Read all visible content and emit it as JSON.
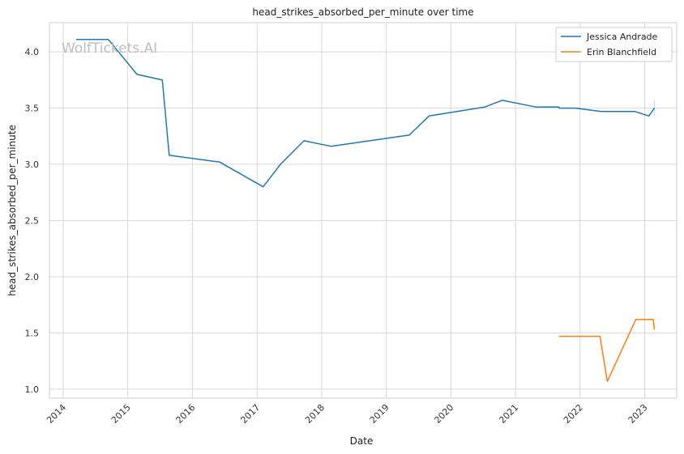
{
  "watermark": "WolfTickets.AI",
  "chart_data": {
    "type": "line",
    "title": "head_strikes_absorbed_per_minute over time",
    "xlabel": "Date",
    "ylabel": "head_strikes_absorbed_per_minute",
    "x_ticks": [
      "2014",
      "2015",
      "2016",
      "2017",
      "2018",
      "2019",
      "2020",
      "2021",
      "2022",
      "2023"
    ],
    "y_ticks": [
      "1.0",
      "1.5",
      "2.0",
      "2.5",
      "3.0",
      "3.5",
      "4.0"
    ],
    "xlim": [
      "2013-10-15",
      "2023-07-01"
    ],
    "ylim": [
      0.92,
      4.26
    ],
    "grid": true,
    "legend_position": "top-right",
    "series": [
      {
        "name": "Jessica Andrade",
        "color": "#1f77b4",
        "points": [
          [
            "2014-03-15",
            4.11
          ],
          [
            "2014-09-13",
            4.11
          ],
          [
            "2015-02-22",
            3.8
          ],
          [
            "2015-07-15",
            3.75
          ],
          [
            "2015-08-23",
            3.08
          ],
          [
            "2016-06-04",
            3.02
          ],
          [
            "2017-02-04",
            2.8
          ],
          [
            "2017-05-13",
            3.0
          ],
          [
            "2017-09-23",
            3.21
          ],
          [
            "2018-02-24",
            3.16
          ],
          [
            "2019-05-11",
            3.26
          ],
          [
            "2019-08-31",
            3.43
          ],
          [
            "2020-07-11",
            3.51
          ],
          [
            "2020-10-17",
            3.57
          ],
          [
            "2021-04-24",
            3.51
          ],
          [
            "2021-09-04",
            3.51
          ],
          [
            "2021-09-05",
            3.5
          ],
          [
            "2021-12-04",
            3.5
          ],
          [
            "2022-04-30",
            3.47
          ],
          [
            "2022-11-05",
            3.47
          ],
          [
            "2023-01-25",
            3.43
          ],
          [
            "2023-02-25",
            3.5
          ]
        ]
      },
      {
        "name": "Erin Blanchfield",
        "color": "#ff7f0e",
        "points": [
          [
            "2021-09-04",
            1.47
          ],
          [
            "2022-04-23",
            1.47
          ],
          [
            "2022-06-04",
            1.07
          ],
          [
            "2022-11-12",
            1.62
          ],
          [
            "2023-02-18",
            1.62
          ],
          [
            "2023-02-25",
            1.53
          ]
        ]
      }
    ]
  }
}
